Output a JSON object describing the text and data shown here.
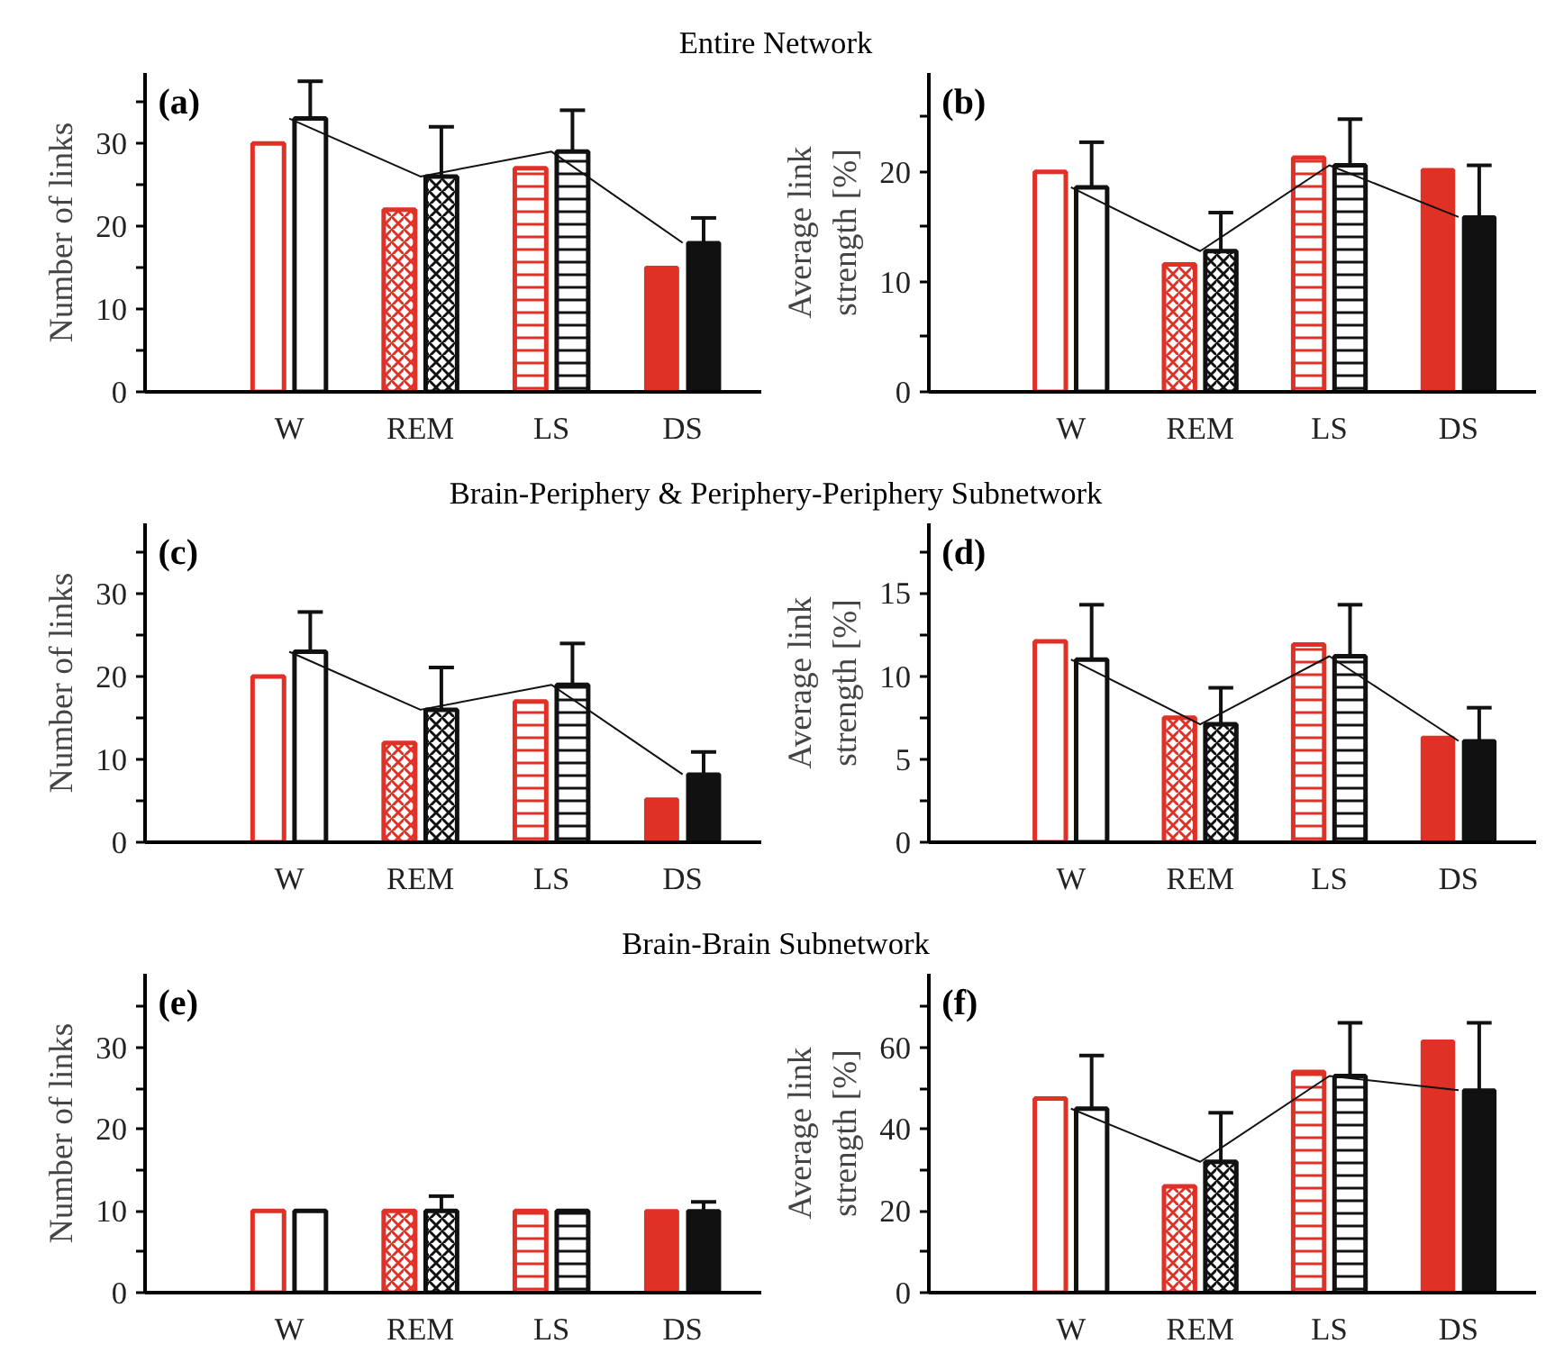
{
  "chart_data": [
    {
      "type": "bar",
      "title": "Entire Network",
      "categories": [
        "W",
        "REM",
        "LS",
        "DS"
      ],
      "ylabel": "Number of links",
      "ylim": [
        0,
        38.5
      ],
      "yticks": [
        0,
        {
          "value": 5,
          "label": null
        },
        10,
        {
          "value": 15,
          "label": null
        },
        20,
        {
          "value": 25,
          "label": null
        },
        30,
        {
          "value": 35,
          "label": null
        }
      ],
      "annotations": [
        "(a)"
      ],
      "grid": false,
      "series": [
        {
          "color": "#e03127",
          "values": [
            30,
            22,
            27,
            15
          ]
        },
        {
          "color": "#111111",
          "values": [
            33,
            26,
            29,
            18
          ],
          "errors": [
            4.5,
            6,
            5,
            3
          ]
        },
        {
          "type": "line",
          "color": "#111111",
          "values": [
            33,
            26,
            29,
            18
          ]
        }
      ]
    },
    {
      "type": "bar",
      "categories": [
        "W",
        "REM",
        "LS",
        "DS"
      ],
      "ylabel": "Average link strength [%]",
      "ylim": [
        0,
        29
      ],
      "yticks": [
        0,
        {
          "value": 5,
          "label": null
        },
        10,
        {
          "value": 15,
          "label": null
        },
        20,
        {
          "value": 25,
          "label": null
        }
      ],
      "annotations": [
        "(b)"
      ],
      "grid": false,
      "series": [
        {
          "color": "#e03127",
          "values": [
            20,
            11.6,
            21.3,
            20.2
          ]
        },
        {
          "color": "#111111",
          "values": [
            18.6,
            12.8,
            20.6,
            15.9
          ],
          "errors": [
            4.1,
            3.5,
            4.2,
            4.7
          ]
        },
        {
          "type": "line",
          "color": "#111111",
          "values": [
            18.6,
            12.8,
            20.6,
            15.9
          ]
        }
      ]
    },
    {
      "type": "bar",
      "title": "Brain-Periphery & Periphery-Periphery Subnetwork",
      "categories": [
        "W",
        "REM",
        "LS",
        "DS"
      ],
      "ylabel": "Number of links",
      "ylim": [
        0,
        38.5
      ],
      "yticks": [
        0,
        {
          "value": 5,
          "label": null
        },
        10,
        {
          "value": 15,
          "label": null
        },
        20,
        {
          "value": 25,
          "label": null
        },
        30,
        {
          "value": 35,
          "label": null
        }
      ],
      "annotations": [
        "(c)"
      ],
      "grid": false,
      "series": [
        {
          "color": "#e03127",
          "values": [
            20,
            12,
            17,
            5.2
          ]
        },
        {
          "color": "#111111",
          "values": [
            23,
            16,
            19,
            8.2
          ],
          "errors": [
            4.8,
            5.1,
            5,
            2.7
          ]
        },
        {
          "type": "line",
          "color": "#111111",
          "values": [
            23,
            16,
            19,
            8.2
          ]
        }
      ]
    },
    {
      "type": "bar",
      "categories": [
        "W",
        "REM",
        "LS",
        "DS"
      ],
      "ylabel": "Average link strength [%]",
      "ylim": [
        0,
        19.2
      ],
      "yticks": [
        0,
        {
          "value": 2.5,
          "label": null
        },
        5,
        {
          "value": 7.5,
          "label": null
        },
        10,
        {
          "value": 12.5,
          "label": null
        },
        15,
        {
          "value": 17.5,
          "label": null
        }
      ],
      "annotations": [
        "(d)"
      ],
      "grid": false,
      "series": [
        {
          "color": "#e03127",
          "values": [
            12.1,
            7.5,
            11.9,
            6.3
          ]
        },
        {
          "color": "#111111",
          "values": [
            11,
            7.1,
            11.2,
            6.1
          ],
          "errors": [
            3.3,
            2.2,
            3.1,
            2
          ]
        },
        {
          "type": "line",
          "color": "#111111",
          "values": [
            11,
            7.1,
            11.2,
            6.1
          ]
        }
      ]
    },
    {
      "type": "bar",
      "title": "Brain-Brain Subnetwork",
      "categories": [
        "W",
        "REM",
        "LS",
        "DS"
      ],
      "ylabel": "Number of links",
      "ylim": [
        0,
        39
      ],
      "yticks": [
        0,
        {
          "value": 5,
          "label": null
        },
        10,
        {
          "value": 15,
          "label": null
        },
        20,
        {
          "value": 25,
          "label": null
        },
        30,
        {
          "value": 35,
          "label": null
        }
      ],
      "annotations": [
        "(e)"
      ],
      "grid": false,
      "series": [
        {
          "color": "#e03127",
          "values": [
            10,
            10,
            10,
            10
          ]
        },
        {
          "color": "#111111",
          "values": [
            10,
            10,
            10,
            10
          ],
          "errors": [
            null,
            1.8,
            null,
            1.1
          ]
        }
      ]
    },
    {
      "type": "bar",
      "categories": [
        "W",
        "REM",
        "LS",
        "DS"
      ],
      "ylabel": "Average link strength [%]",
      "ylim": [
        0,
        78
      ],
      "yticks": [
        0,
        {
          "value": 10,
          "label": null
        },
        20,
        {
          "value": 30,
          "label": null
        },
        40,
        {
          "value": 50,
          "label": null
        },
        60,
        {
          "value": 70,
          "label": null
        }
      ],
      "annotations": [
        "(f)"
      ],
      "grid": false,
      "series": [
        {
          "color": "#e03127",
          "values": [
            47.5,
            26,
            54,
            61.5
          ]
        },
        {
          "color": "#111111",
          "values": [
            45,
            32,
            53,
            49.5
          ],
          "errors": [
            13,
            12,
            13,
            16.5
          ]
        },
        {
          "type": "line",
          "color": "#111111",
          "values": [
            45,
            32,
            53,
            49.5
          ]
        }
      ]
    }
  ]
}
